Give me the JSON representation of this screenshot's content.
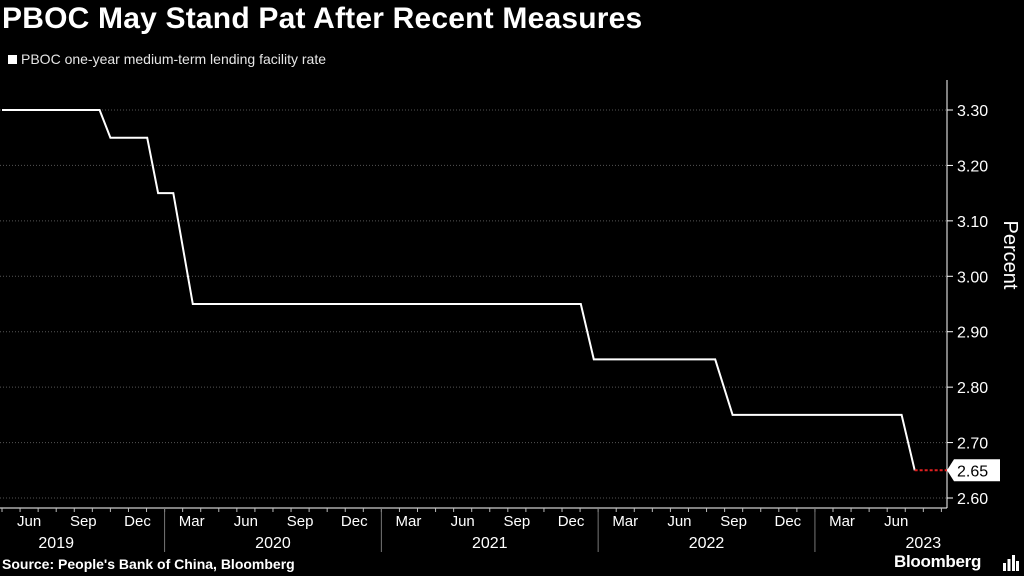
{
  "header": {
    "title": "PBOC May Stand Pat After Recent Measures"
  },
  "legend": {
    "label": "PBOC one-year medium-term lending facility rate"
  },
  "footer": {
    "source": "Source: People's Bank of China, Bloomberg",
    "brand": "Bloomberg"
  },
  "colors": {
    "background": "#000000",
    "line": "#ffffff",
    "grid": "#555555",
    "marker": "#e02020"
  },
  "chart_data": {
    "type": "line",
    "title": "PBOC May Stand Pat After Recent Measures",
    "ylabel": "Percent",
    "xlabel": "",
    "ylim": [
      2.6,
      3.35
    ],
    "yticks": [
      "3.30",
      "3.20",
      "3.10",
      "3.00",
      "2.90",
      "2.80",
      "2.70",
      "2.60"
    ],
    "xlim": [
      2019.25,
      2023.6
    ],
    "month_ticks": [
      {
        "x": 2019.375,
        "label": "Jun"
      },
      {
        "x": 2019.625,
        "label": "Sep"
      },
      {
        "x": 2019.875,
        "label": "Dec"
      },
      {
        "x": 2020.125,
        "label": "Mar"
      },
      {
        "x": 2020.375,
        "label": "Jun"
      },
      {
        "x": 2020.625,
        "label": "Sep"
      },
      {
        "x": 2020.875,
        "label": "Dec"
      },
      {
        "x": 2021.125,
        "label": "Mar"
      },
      {
        "x": 2021.375,
        "label": "Jun"
      },
      {
        "x": 2021.625,
        "label": "Sep"
      },
      {
        "x": 2021.875,
        "label": "Dec"
      },
      {
        "x": 2022.125,
        "label": "Mar"
      },
      {
        "x": 2022.375,
        "label": "Jun"
      },
      {
        "x": 2022.625,
        "label": "Sep"
      },
      {
        "x": 2022.875,
        "label": "Dec"
      },
      {
        "x": 2023.125,
        "label": "Mar"
      },
      {
        "x": 2023.375,
        "label": "Jun"
      }
    ],
    "year_labels": [
      {
        "x": 2019.5,
        "label": "2019"
      },
      {
        "x": 2020.5,
        "label": "2020"
      },
      {
        "x": 2021.5,
        "label": "2021"
      },
      {
        "x": 2022.5,
        "label": "2022"
      },
      {
        "x": 2023.5,
        "label": "2023"
      }
    ],
    "year_boundaries": [
      2020.0,
      2021.0,
      2022.0,
      2023.0
    ],
    "series": [
      {
        "name": "PBOC one-year medium-term lending facility rate",
        "points": [
          [
            2019.25,
            3.3
          ],
          [
            2019.7,
            3.3
          ],
          [
            2019.75,
            3.25
          ],
          [
            2019.92,
            3.25
          ],
          [
            2019.97,
            3.15
          ],
          [
            2020.04,
            3.15
          ],
          [
            2020.13,
            2.95
          ],
          [
            2021.92,
            2.95
          ],
          [
            2021.98,
            2.85
          ],
          [
            2022.54,
            2.85
          ],
          [
            2022.62,
            2.75
          ],
          [
            2023.4,
            2.75
          ],
          [
            2023.46,
            2.65
          ]
        ]
      }
    ],
    "last_value": {
      "value": 2.65,
      "label": "2.65"
    }
  }
}
